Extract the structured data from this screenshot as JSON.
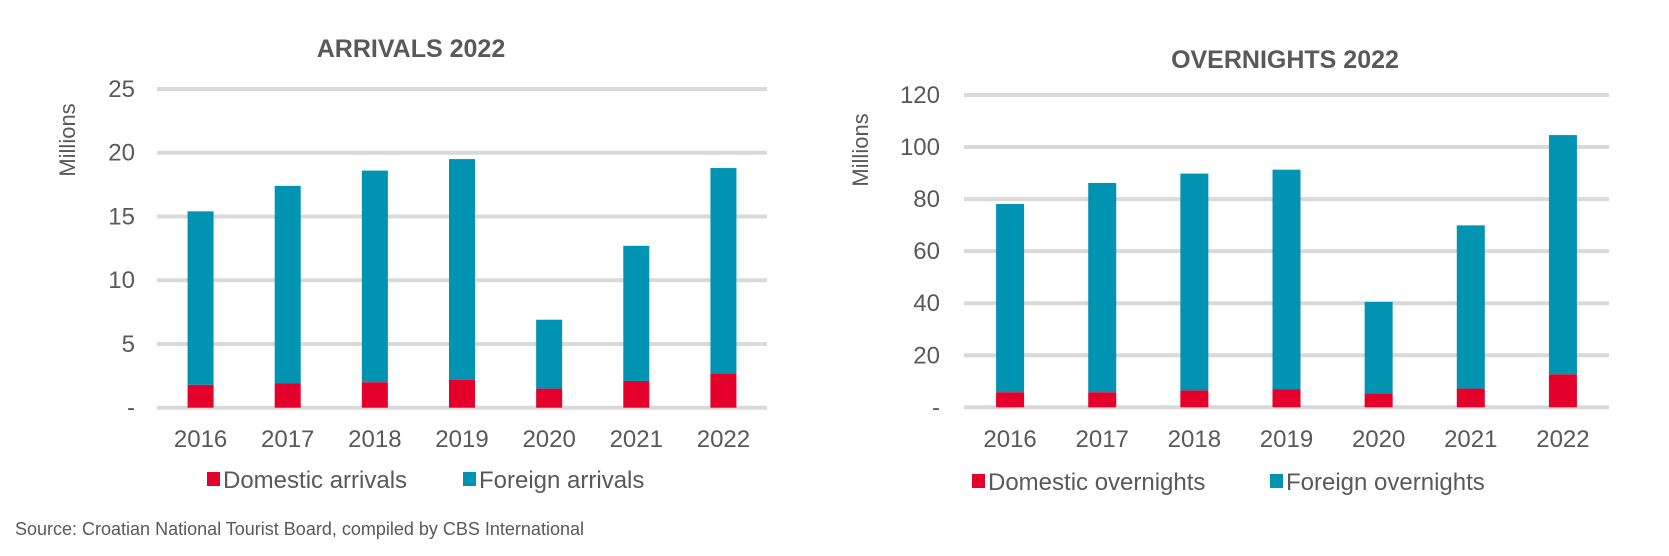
{
  "source_note": "Source: Croatian National Tourist Board, compiled by CBS International",
  "colors": {
    "domestic": "#e4002b",
    "foreign": "#0093b2",
    "grid": "#d9d9d9",
    "text": "#595959"
  },
  "chart_data": [
    {
      "type": "bar",
      "stacked": true,
      "title": "ARRIVALS 2022",
      "xlabel": "",
      "ylabel": "Millions",
      "ylim": [
        0,
        25
      ],
      "yticks": [
        0,
        5,
        10,
        15,
        20,
        25
      ],
      "ytick_labels": [
        "-",
        "5",
        "10",
        "15",
        "20",
        "25"
      ],
      "grid": true,
      "legend_position": "bottom",
      "categories": [
        "2016",
        "2017",
        "2018",
        "2019",
        "2020",
        "2021",
        "2022"
      ],
      "series": [
        {
          "name": "Domestic arrivals",
          "color": "#e4002b",
          "values": [
            1.8,
            1.9,
            2.0,
            2.2,
            1.5,
            2.1,
            2.7
          ]
        },
        {
          "name": "Foreign arrivals",
          "color": "#0093b2",
          "values": [
            13.6,
            15.5,
            16.6,
            17.3,
            5.4,
            10.6,
            16.1
          ]
        }
      ],
      "totals": [
        15.4,
        17.4,
        18.6,
        19.5,
        6.9,
        12.7,
        18.8
      ]
    },
    {
      "type": "bar",
      "stacked": true,
      "title": "OVERNIGHTS 2022",
      "xlabel": "",
      "ylabel": "Millions",
      "ylim": [
        0,
        120
      ],
      "yticks": [
        0,
        20,
        40,
        60,
        80,
        100,
        120
      ],
      "ytick_labels": [
        "-",
        "20",
        "40",
        "60",
        "80",
        "100",
        "120"
      ],
      "grid": true,
      "legend_position": "bottom",
      "categories": [
        "2016",
        "2017",
        "2018",
        "2019",
        "2020",
        "2021",
        "2022"
      ],
      "series": [
        {
          "name": "Domestic overnights",
          "color": "#e4002b",
          "values": [
            5.8,
            5.8,
            6.5,
            7.0,
            5.4,
            7.2,
            12.7
          ]
        },
        {
          "name": "Foreign overnights",
          "color": "#0093b2",
          "values": [
            72.3,
            80.4,
            83.3,
            84.3,
            35.1,
            62.7,
            91.9
          ]
        }
      ],
      "totals": [
        78.1,
        86.2,
        89.8,
        91.3,
        40.5,
        69.9,
        104.6
      ]
    }
  ]
}
